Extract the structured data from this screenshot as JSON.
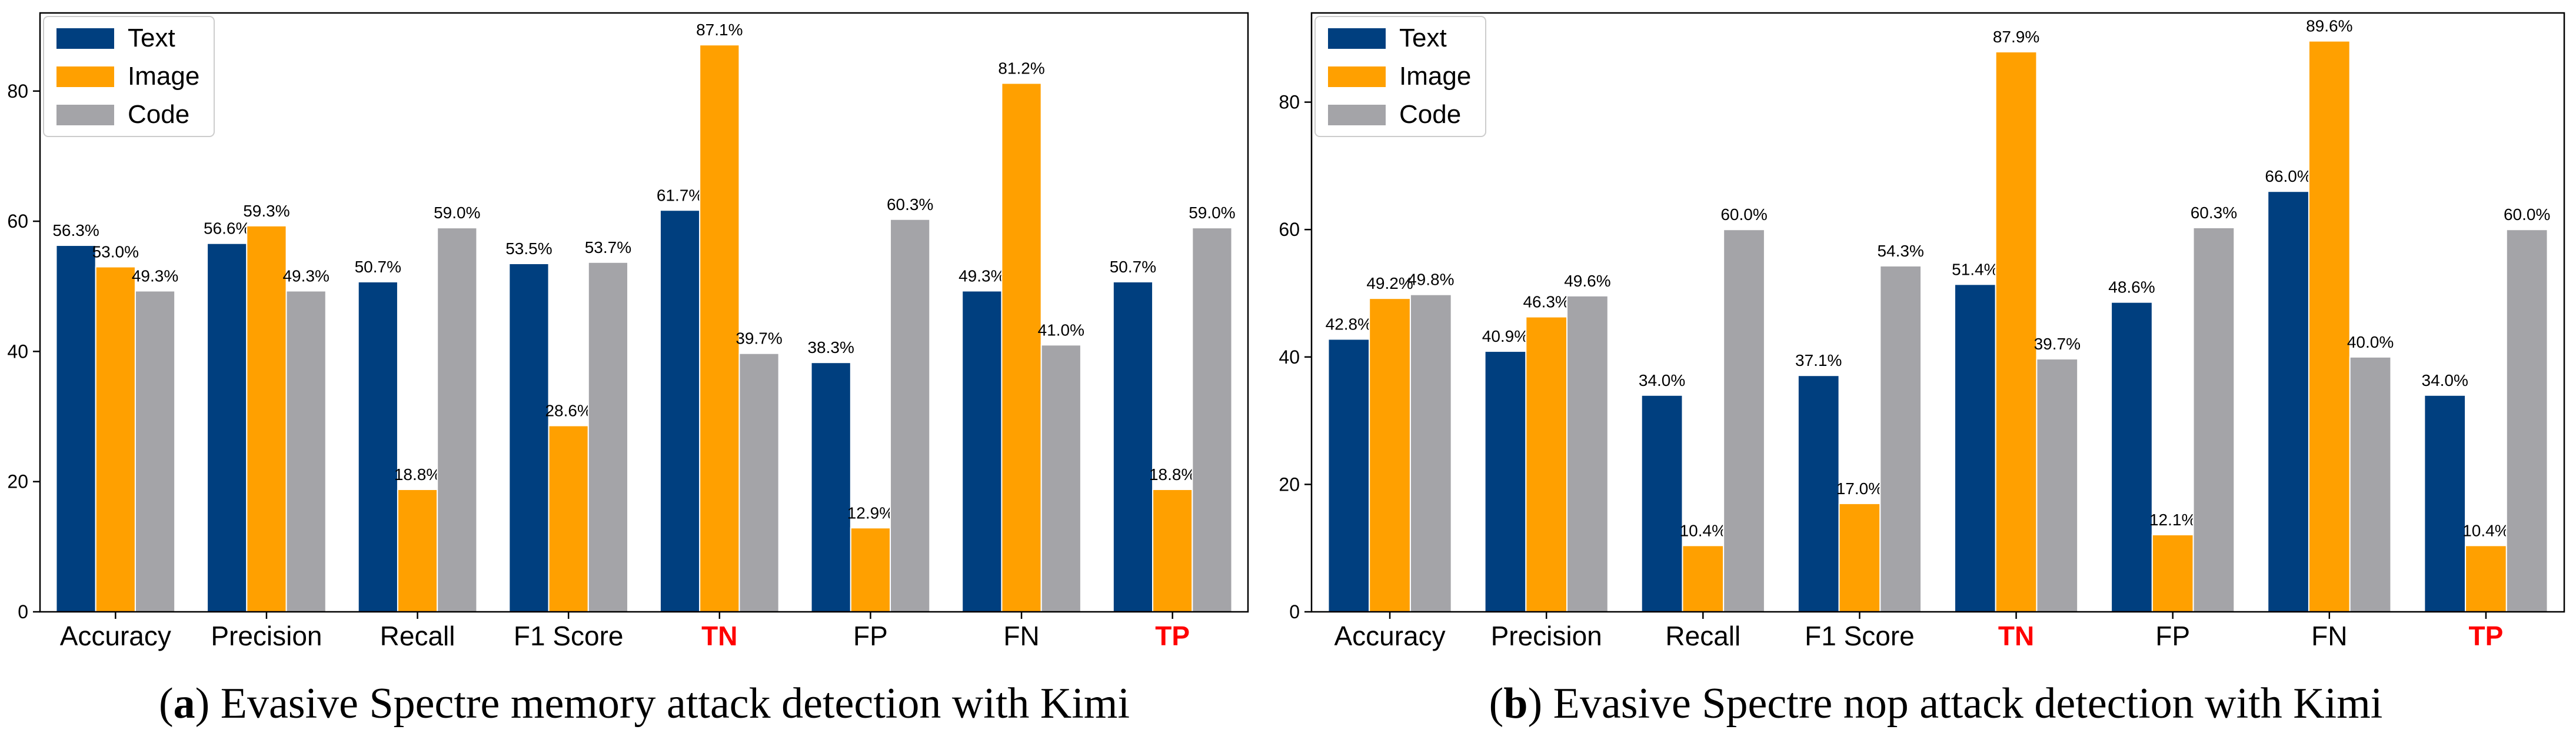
{
  "colors": {
    "text": "#003f7f",
    "image": "#ffa000",
    "code": "#a4a4a8",
    "highlight": "#ff0000"
  },
  "chart_data": [
    {
      "type": "bar",
      "panel_letter": "a",
      "title": "Evasive Spectre memory attack detection with Kimi",
      "caption_open": "(",
      "caption_close": ") ",
      "categories": [
        "Accuracy",
        "Precision",
        "Recall",
        "F1 Score",
        "TN",
        "FP",
        "FN",
        "TP"
      ],
      "highlighted_categories": [
        "TN",
        "TP"
      ],
      "series": [
        {
          "name": "Text",
          "values": [
            56.3,
            56.6,
            50.7,
            53.5,
            61.7,
            38.3,
            49.3,
            50.7
          ]
        },
        {
          "name": "Image",
          "values": [
            53.0,
            59.3,
            18.8,
            28.6,
            87.1,
            12.9,
            81.2,
            18.8
          ]
        },
        {
          "name": "Code",
          "values": [
            49.3,
            49.3,
            59.0,
            53.7,
            39.7,
            60.3,
            41.0,
            59.0
          ]
        }
      ],
      "yticks": [
        0,
        20,
        40,
        60,
        80
      ],
      "ylim": [
        0,
        92
      ],
      "value_suffix": "%",
      "legend_position": "upper-left",
      "xlabel": "",
      "ylabel": ""
    },
    {
      "type": "bar",
      "panel_letter": "b",
      "title": "Evasive Spectre nop attack detection with Kimi",
      "caption_open": "(",
      "caption_close": ") ",
      "categories": [
        "Accuracy",
        "Precision",
        "Recall",
        "F1 Score",
        "TN",
        "FP",
        "FN",
        "TP"
      ],
      "highlighted_categories": [
        "TN",
        "TP"
      ],
      "series": [
        {
          "name": "Text",
          "values": [
            42.8,
            40.9,
            34.0,
            37.1,
            51.4,
            48.6,
            66.0,
            34.0
          ]
        },
        {
          "name": "Image",
          "values": [
            49.2,
            46.3,
            10.4,
            17.0,
            87.9,
            12.1,
            89.6,
            10.4
          ]
        },
        {
          "name": "Code",
          "values": [
            49.8,
            49.6,
            60.0,
            54.3,
            39.7,
            60.3,
            40.0,
            60.0
          ]
        }
      ],
      "yticks": [
        0,
        20,
        40,
        60,
        80
      ],
      "ylim": [
        0,
        94
      ],
      "value_suffix": "%",
      "legend_position": "upper-left",
      "xlabel": "",
      "ylabel": ""
    }
  ]
}
